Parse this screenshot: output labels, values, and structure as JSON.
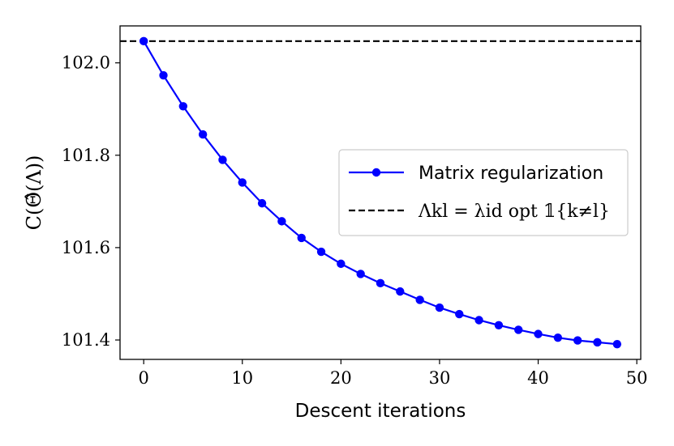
{
  "chart_data": {
    "type": "line",
    "xlabel": "Descent iterations",
    "ylabel": "C(Θ̂(Λ))",
    "xlim": [
      -2.4,
      50.4
    ],
    "ylim": [
      101.358,
      102.08
    ],
    "xticks": [
      0,
      10,
      20,
      30,
      40,
      50
    ],
    "yticks": [
      101.4,
      101.6,
      101.8,
      102.0
    ],
    "xtick_labels": [
      "0",
      "10",
      "20",
      "30",
      "40",
      "50"
    ],
    "ytick_labels": [
      "101.4",
      "101.6",
      "101.8",
      "102.0"
    ],
    "grid": false,
    "legend_position": "center-right",
    "series": [
      {
        "name": "Matrix regularization",
        "style": "solid-line-with-circle-markers",
        "color": "#0000ff",
        "x": [
          0,
          2,
          4,
          6,
          8,
          10,
          12,
          14,
          16,
          18,
          20,
          22,
          24,
          26,
          28,
          30,
          32,
          34,
          36,
          38,
          40,
          42,
          44,
          46,
          48
        ],
        "y": [
          102.047,
          101.973,
          101.906,
          101.845,
          101.79,
          101.741,
          101.696,
          101.657,
          101.621,
          101.591,
          101.565,
          101.543,
          101.523,
          101.505,
          101.487,
          101.47,
          101.456,
          101.443,
          101.432,
          101.422,
          101.413,
          101.405,
          101.399,
          101.395,
          101.391
        ]
      },
      {
        "name": "Λkl = λid opt 𝟙{k≠l}",
        "style": "dashed-horizontal-line",
        "color": "#000000",
        "y": 102.047
      }
    ]
  }
}
